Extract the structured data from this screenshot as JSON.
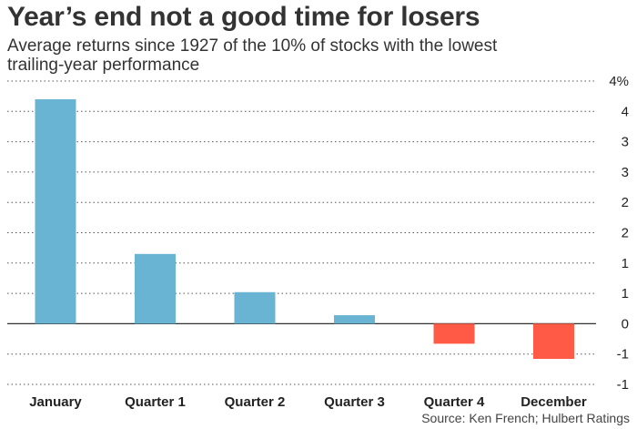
{
  "title": "Year’s end not a good time for losers",
  "subtitle": "Average returns since 1927 of the 10% of stocks with the lowest trailing-year performance",
  "source": "Source: Ken French; Hulbert Ratings",
  "colors": {
    "positive": "#69b3d3",
    "negative": "#ff5a45",
    "grid": "#555555",
    "zero": "#333333"
  },
  "chart_data": {
    "type": "bar",
    "categories": [
      "January",
      "Quarter 1",
      "Quarter 2",
      "Quarter 3",
      "Quarter 4",
      "December"
    ],
    "values": [
      3.7,
      1.15,
      0.52,
      0.14,
      -0.33,
      -0.58
    ],
    "ylim": [
      -1,
      4
    ],
    "y_ticks": [
      4,
      3.5,
      3,
      2.5,
      2,
      1.5,
      1,
      0.5,
      0,
      -0.5,
      -1
    ],
    "y_tick_labels": [
      "4%",
      "4",
      "3",
      "3",
      "2",
      "2",
      "1",
      "1",
      "0",
      "-1",
      "-1"
    ],
    "grid": true,
    "xlabel": "",
    "ylabel": ""
  }
}
